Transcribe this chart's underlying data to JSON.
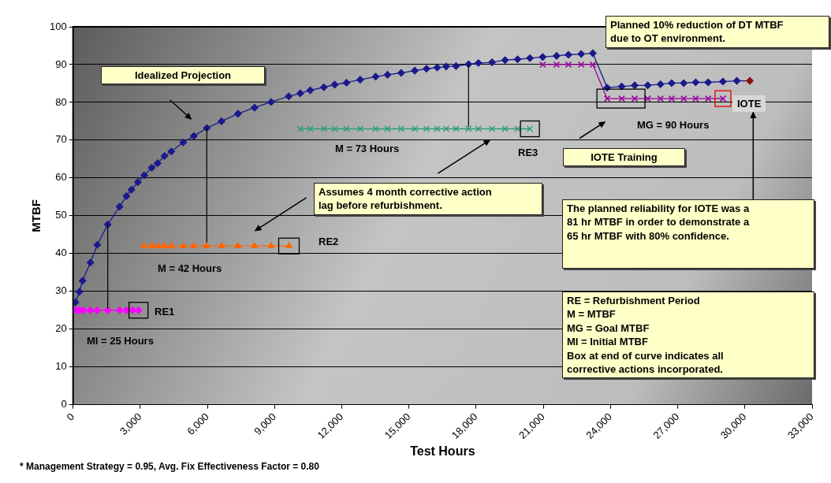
{
  "chart_data": {
    "type": "line",
    "xlabel": "Test Hours",
    "ylabel": "MTBF",
    "xlim": [
      0,
      33000
    ],
    "ylim": [
      0,
      100
    ],
    "xticks": [
      0,
      {
        "value": 3000,
        "label": "3,000"
      },
      {
        "value": 6000,
        "label": "6,000"
      },
      {
        "value": 9000,
        "label": "9,000"
      },
      {
        "value": 12000,
        "label": "12,000"
      },
      {
        "value": 15000,
        "label": "15,000"
      },
      {
        "value": 18000,
        "label": "18,000"
      },
      {
        "value": 21000,
        "label": "21,000"
      },
      {
        "value": 24000,
        "label": "24,000"
      },
      {
        "value": 27000,
        "label": "27,000"
      },
      {
        "value": 30000,
        "label": "30,000"
      },
      {
        "value": 33000,
        "label": "33,000"
      }
    ],
    "yticks": [
      0,
      10,
      20,
      30,
      40,
      50,
      60,
      70,
      80,
      90,
      100
    ],
    "grid": "y",
    "legend": false,
    "series": [
      {
        "type": "line",
        "marker": "diamond",
        "color": "#1a1a8c",
        "x": [
          106,
          282,
          423,
          774,
          1080,
          1548,
          2076,
          2382,
          2604,
          2896,
          3178,
          3508,
          3775,
          4082,
          4387,
          4915,
          5394,
          5971,
          6627,
          7365,
          8104,
          8843,
          9630,
          10145,
          10590,
          11200,
          11682,
          12210,
          12820,
          13512,
          14040,
          14650,
          15260,
          15780,
          16260,
          16660,
          17100,
          17660,
          18100,
          18710,
          19290,
          19850,
          20400,
          20970,
          21590,
          22120,
          22690,
          23210,
          23850,
          24500,
          25080,
          25660,
          26230,
          26730,
          27270,
          27800,
          28360,
          29020,
          29640,
          30220
        ],
        "values": [
          27.1,
          29.9,
          32.8,
          37.6,
          42.3,
          47.7,
          52.4,
          55.2,
          56.9,
          58.9,
          60.7,
          62.7,
          63.9,
          65.8,
          67.0,
          69.4,
          71.1,
          73.2,
          75.0,
          77.0,
          78.6,
          80.1,
          81.6,
          82.4,
          83.2,
          84.0,
          84.7,
          85.2,
          86.0,
          86.8,
          87.3,
          87.8,
          88.4,
          88.9,
          89.2,
          89.5,
          89.6,
          90.1,
          90.4,
          90.6,
          91.2,
          91.4,
          91.7,
          92.0,
          92.3,
          92.6,
          92.8,
          93.0,
          83.9,
          84.2,
          84.5,
          84.5,
          84.8,
          85.1,
          85.1,
          85.3,
          85.3,
          85.5,
          85.7,
          85.7
        ],
        "colors": [
          "#1a1a8c",
          "#1a1a8c",
          "#1a1a8c",
          "#1a1a8c",
          "#1a1a8c",
          "#1a1a8c",
          "#1a1a8c",
          "#1a1a8c",
          "#1a1a8c",
          "#1a1a8c",
          "#1a1a8c",
          "#1a1a8c",
          "#1a1a8c",
          "#1a1a8c",
          "#1a1a8c",
          "#1a1a8c",
          "#1a1a8c",
          "#1a1a8c",
          "#1a1a8c",
          "#1a1a8c",
          "#1a1a8c",
          "#1a1a8c",
          "#1a1a8c",
          "#1a1a8c",
          "#1a1a8c",
          "#1a1a8c",
          "#1a1a8c",
          "#1a1a8c",
          "#1a1a8c",
          "#1a1a8c",
          "#1a1a8c",
          "#1a1a8c",
          "#1a1a8c",
          "#1a1a8c",
          "#1a1a8c",
          "#1a1a8c",
          "#1a1a8c",
          "#1a1a8c",
          "#1a1a8c",
          "#1a1a8c",
          "#1a1a8c",
          "#1a1a8c",
          "#1a1a8c",
          "#1a1a8c",
          "#1a1a8c",
          "#1a1a8c",
          "#1a1a8c",
          "#1a1a8c",
          "#1a1a8c",
          "#1a1a8c",
          "#1a1a8c",
          "#1a1a8c",
          "#1a1a8c",
          "#1a1a8c",
          "#1a1a8c",
          "#1a1a8c",
          "#1a1a8c",
          "#1a1a8c",
          "#1a1a8c",
          "#8b1010"
        ]
      },
      {
        "type": "line",
        "marker": "diamond",
        "color": "#ff00ff",
        "x": [
          0,
          150,
          290,
          460,
          770,
          1080,
          1550,
          2080,
          2380,
          2660,
          2920
        ],
        "values": [
          25,
          25,
          25,
          25,
          25,
          25,
          25,
          25,
          25,
          25,
          25
        ]
      },
      {
        "type": "line",
        "marker": "triangle",
        "color": "#ff6600",
        "x": [
          3170,
          3520,
          3790,
          4080,
          4390,
          4920,
          5390,
          5970,
          6630,
          7360,
          8100,
          8840,
          9640
        ],
        "values": [
          42,
          42,
          42,
          42,
          42,
          42,
          42,
          42,
          42,
          42,
          42,
          42,
          42
        ]
      },
      {
        "type": "line",
        "marker": "cross",
        "color": "#2e9e7a",
        "x": [
          10145,
          10590,
          11200,
          11680,
          12210,
          12820,
          13510,
          14040,
          14650,
          15260,
          15780,
          16260,
          16660,
          17100,
          17660,
          18100,
          18710,
          19290,
          19850,
          20400
        ],
        "values": [
          73,
          73,
          73,
          73,
          73,
          73,
          73,
          73,
          73,
          73,
          73,
          73,
          73,
          73,
          73,
          73,
          73,
          73,
          73,
          73
        ]
      },
      {
        "type": "line",
        "marker": "cross",
        "color": "#990099",
        "x": [
          20970,
          21590,
          22120,
          22690,
          23210,
          23850,
          24500,
          25080,
          25660,
          26230,
          26730,
          27270,
          27800,
          28360,
          29020
        ],
        "values": [
          90,
          90,
          90,
          90,
          90,
          81,
          81,
          81,
          81,
          81,
          81,
          81,
          81,
          81,
          81
        ]
      }
    ],
    "annotations": [
      "Idealized Projection",
      "Assumes 4 month corrective action\nlag before refurbishment.",
      "Planned 10% reduction of DT MTBF\ndue to OT environment.",
      "IOTE Training",
      "The planned reliability for IOTE was a\n81 hr MTBF in order to demonstrate a\n65 hr MTBF with 80% confidence.",
      "RE = Refurbishment Period\nM = MTBF\nMG = Goal MTBF\nMI = Initial MTBF\nBox at end of curve indicates all\ncorrective actions incorporated.",
      "MI = 25 Hours",
      "M = 42 Hours",
      "M = 73 Hours",
      "MG = 90 Hours",
      "RE1",
      "RE2",
      "RE3",
      "IOTE",
      "* Management Strategy = 0.95, Avg. Fix Effectiveness Factor = 0.80"
    ]
  }
}
